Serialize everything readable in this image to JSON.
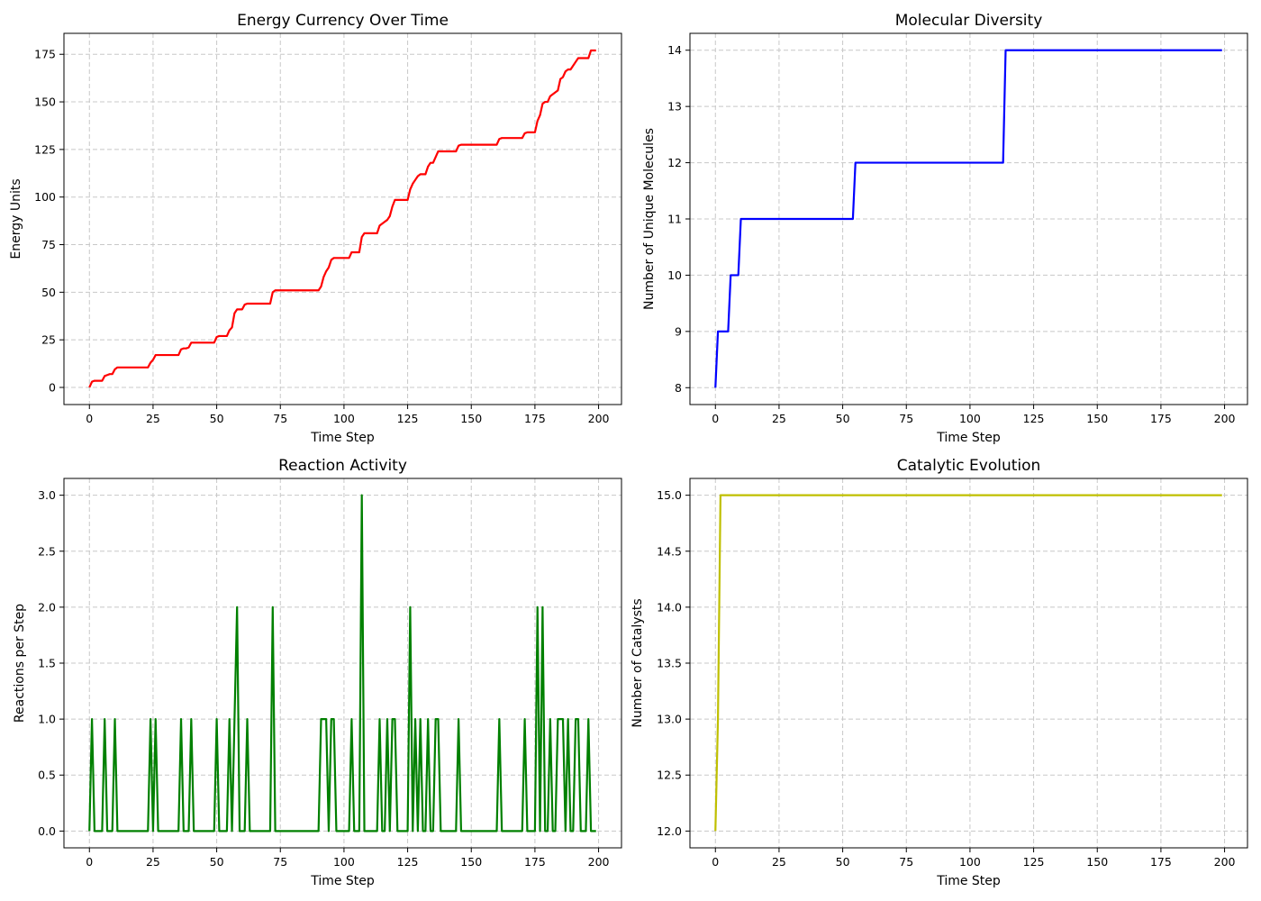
{
  "chart_data": [
    {
      "type": "line",
      "title": "Energy Currency Over Time",
      "xlabel": "Time Step",
      "ylabel": "Energy Units",
      "xlim": [
        -10,
        209
      ],
      "ylim": [
        -9,
        186
      ],
      "xticks": [
        0,
        25,
        50,
        75,
        100,
        125,
        150,
        175,
        200
      ],
      "yticks": [
        0,
        25,
        50,
        75,
        100,
        125,
        150,
        175
      ],
      "ytick_labels": [
        "0",
        "25",
        "50",
        "75",
        "100",
        "125",
        "150",
        "175"
      ],
      "grid": true,
      "color": "#ff0000",
      "series": [
        {
          "x": [
            0,
            1,
            2,
            5,
            6,
            7,
            8,
            9,
            10,
            11,
            23,
            24,
            25,
            26,
            27,
            35,
            36,
            37,
            38,
            39,
            40,
            41,
            49,
            50,
            51,
            54,
            55,
            56,
            57,
            58,
            59,
            60,
            61,
            62,
            63,
            71,
            72,
            73,
            90,
            91,
            92,
            93,
            94,
            95,
            96,
            97,
            102,
            103,
            104,
            106,
            107,
            108,
            113,
            114,
            115,
            116,
            117,
            118,
            119,
            120,
            121,
            125,
            126,
            127,
            128,
            129,
            130,
            132,
            133,
            134,
            135,
            136,
            137,
            138,
            144,
            145,
            146,
            160,
            161,
            162,
            170,
            171,
            172,
            175,
            176,
            177,
            178,
            179,
            180,
            181,
            182,
            184,
            185,
            186,
            187,
            188,
            189,
            191,
            192,
            193,
            196,
            197,
            199
          ],
          "y": [
            0,
            3,
            3.5,
            3.5,
            6,
            6.5,
            7,
            7,
            9.5,
            10.5,
            10.5,
            13,
            14.5,
            17,
            17,
            17,
            20,
            20.5,
            20.5,
            21,
            23.5,
            23.5,
            23.5,
            26.5,
            27,
            27,
            30,
            31.5,
            39,
            41,
            41,
            41,
            43.5,
            44,
            44,
            44,
            50,
            51,
            51,
            53,
            58,
            61,
            63,
            67,
            68,
            68,
            68,
            71,
            71,
            71,
            79,
            81,
            81,
            85,
            86,
            87,
            88,
            90,
            95,
            98.5,
            98.5,
            98.5,
            104,
            107,
            109,
            111,
            112,
            112,
            116,
            118,
            118,
            121,
            124,
            124,
            124,
            127,
            127.5,
            127.5,
            130.5,
            131,
            131,
            133.5,
            134,
            134,
            140,
            143,
            149,
            150,
            150,
            153,
            154,
            156,
            162,
            163,
            166,
            167,
            167,
            171,
            173,
            173,
            173,
            177,
            177
          ]
        }
      ]
    },
    {
      "type": "line",
      "title": "Molecular Diversity",
      "xlabel": "Time Step",
      "ylabel": "Number of Unique Molecules",
      "xlim": [
        -10,
        209
      ],
      "ylim": [
        7.7,
        14.3
      ],
      "xticks": [
        0,
        25,
        50,
        75,
        100,
        125,
        150,
        175,
        200
      ],
      "yticks": [
        8,
        9,
        10,
        11,
        12,
        13,
        14
      ],
      "ytick_labels": [
        "8",
        "9",
        "10",
        "11",
        "12",
        "13",
        "14"
      ],
      "grid": true,
      "color": "#0000ff",
      "series": [
        {
          "x": [
            0,
            1,
            5,
            6,
            9,
            10,
            54,
            55,
            113,
            114,
            199
          ],
          "y": [
            8,
            9,
            9,
            10,
            10,
            11,
            11,
            12,
            12,
            14,
            14
          ]
        }
      ]
    },
    {
      "type": "line",
      "title": "Reaction Activity",
      "xlabel": "Time Step",
      "ylabel": "Reactions per Step",
      "xlim": [
        -10,
        209
      ],
      "ylim": [
        -0.15,
        3.15
      ],
      "xticks": [
        0,
        25,
        50,
        75,
        100,
        125,
        150,
        175,
        200
      ],
      "yticks": [
        0,
        0.5,
        1.0,
        1.5,
        2.0,
        2.5,
        3.0
      ],
      "ytick_labels": [
        "0.0",
        "0.5",
        "1.0",
        "1.5",
        "2.0",
        "2.5",
        "3.0"
      ],
      "grid": true,
      "color": "#008000",
      "series": [
        {
          "x": [
            0,
            1,
            2,
            5,
            6,
            7,
            9,
            10,
            11,
            23,
            24,
            25,
            26,
            27,
            35,
            36,
            37,
            39,
            40,
            41,
            49,
            50,
            51,
            54,
            55,
            56,
            57,
            58,
            59,
            61,
            62,
            63,
            71,
            72,
            73,
            90,
            91,
            93,
            94,
            95,
            96,
            97,
            102,
            103,
            104,
            106,
            107,
            108,
            113,
            114,
            115,
            116,
            117,
            118,
            119,
            120,
            121,
            125,
            126,
            127,
            128,
            129,
            130,
            131,
            132,
            133,
            134,
            135,
            136,
            137,
            138,
            144,
            145,
            146,
            160,
            161,
            162,
            170,
            171,
            172,
            175,
            176,
            177,
            178,
            179,
            180,
            181,
            182,
            183,
            184,
            186,
            187,
            188,
            189,
            190,
            191,
            192,
            193,
            194,
            195,
            196,
            197,
            199
          ],
          "y": [
            0,
            1,
            0,
            0,
            1,
            0,
            0,
            1,
            0,
            0,
            1,
            0,
            1,
            0,
            0,
            1,
            0,
            0,
            1,
            0,
            0,
            1,
            0,
            0,
            1,
            0,
            1,
            2,
            0,
            0,
            1,
            0,
            0,
            2,
            0,
            0,
            1,
            1,
            0,
            1,
            1,
            0,
            0,
            1,
            0,
            0,
            3,
            0,
            0,
            1,
            0,
            0,
            1,
            0,
            1,
            1,
            0,
            0,
            2,
            0,
            1,
            0,
            1,
            0,
            0,
            1,
            0,
            0,
            1,
            1,
            0,
            0,
            1,
            0,
            0,
            1,
            0,
            0,
            1,
            0,
            0,
            2,
            0,
            2,
            0,
            0,
            1,
            0,
            0,
            1,
            1,
            0,
            1,
            0,
            0,
            1,
            1,
            0,
            0,
            0,
            1,
            0,
            0
          ]
        }
      ]
    },
    {
      "type": "line",
      "title": "Catalytic Evolution",
      "xlabel": "Time Step",
      "ylabel": "Number of Catalysts",
      "xlim": [
        -10,
        209
      ],
      "ylim": [
        11.85,
        15.15
      ],
      "xticks": [
        0,
        25,
        50,
        75,
        100,
        125,
        150,
        175,
        200
      ],
      "yticks": [
        12.0,
        12.5,
        13.0,
        13.5,
        14.0,
        14.5,
        15.0
      ],
      "ytick_labels": [
        "12.0",
        "12.5",
        "13.0",
        "13.5",
        "14.0",
        "14.5",
        "15.0"
      ],
      "grid": true,
      "color": "#bfbf00",
      "series": [
        {
          "x": [
            0,
            1,
            2,
            199
          ],
          "y": [
            12,
            13,
            15,
            15
          ]
        }
      ]
    }
  ]
}
